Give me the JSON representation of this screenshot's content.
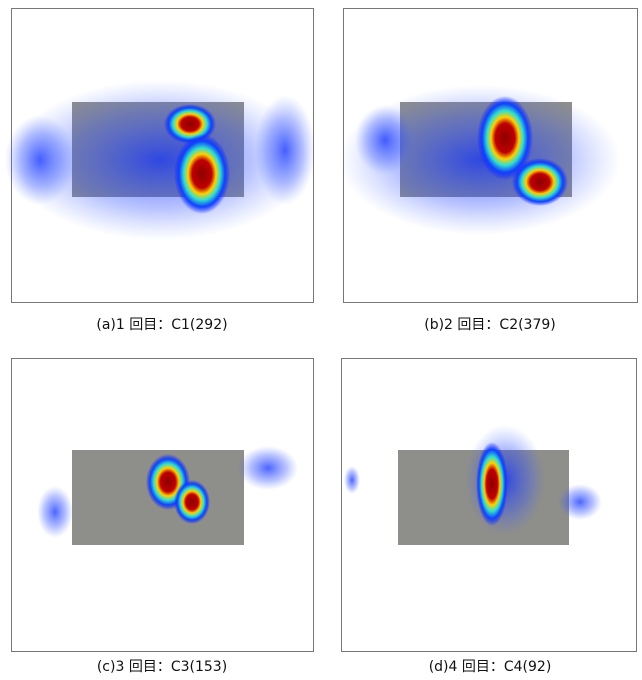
{
  "panels": [
    {
      "caption": "(a)1 回目：C1(292)"
    },
    {
      "caption": "(b)2 回目：C2(379)"
    },
    {
      "caption": "(c)3 回目：C3(153)"
    },
    {
      "caption": "(d)4 回目：C4(92)"
    }
  ]
}
